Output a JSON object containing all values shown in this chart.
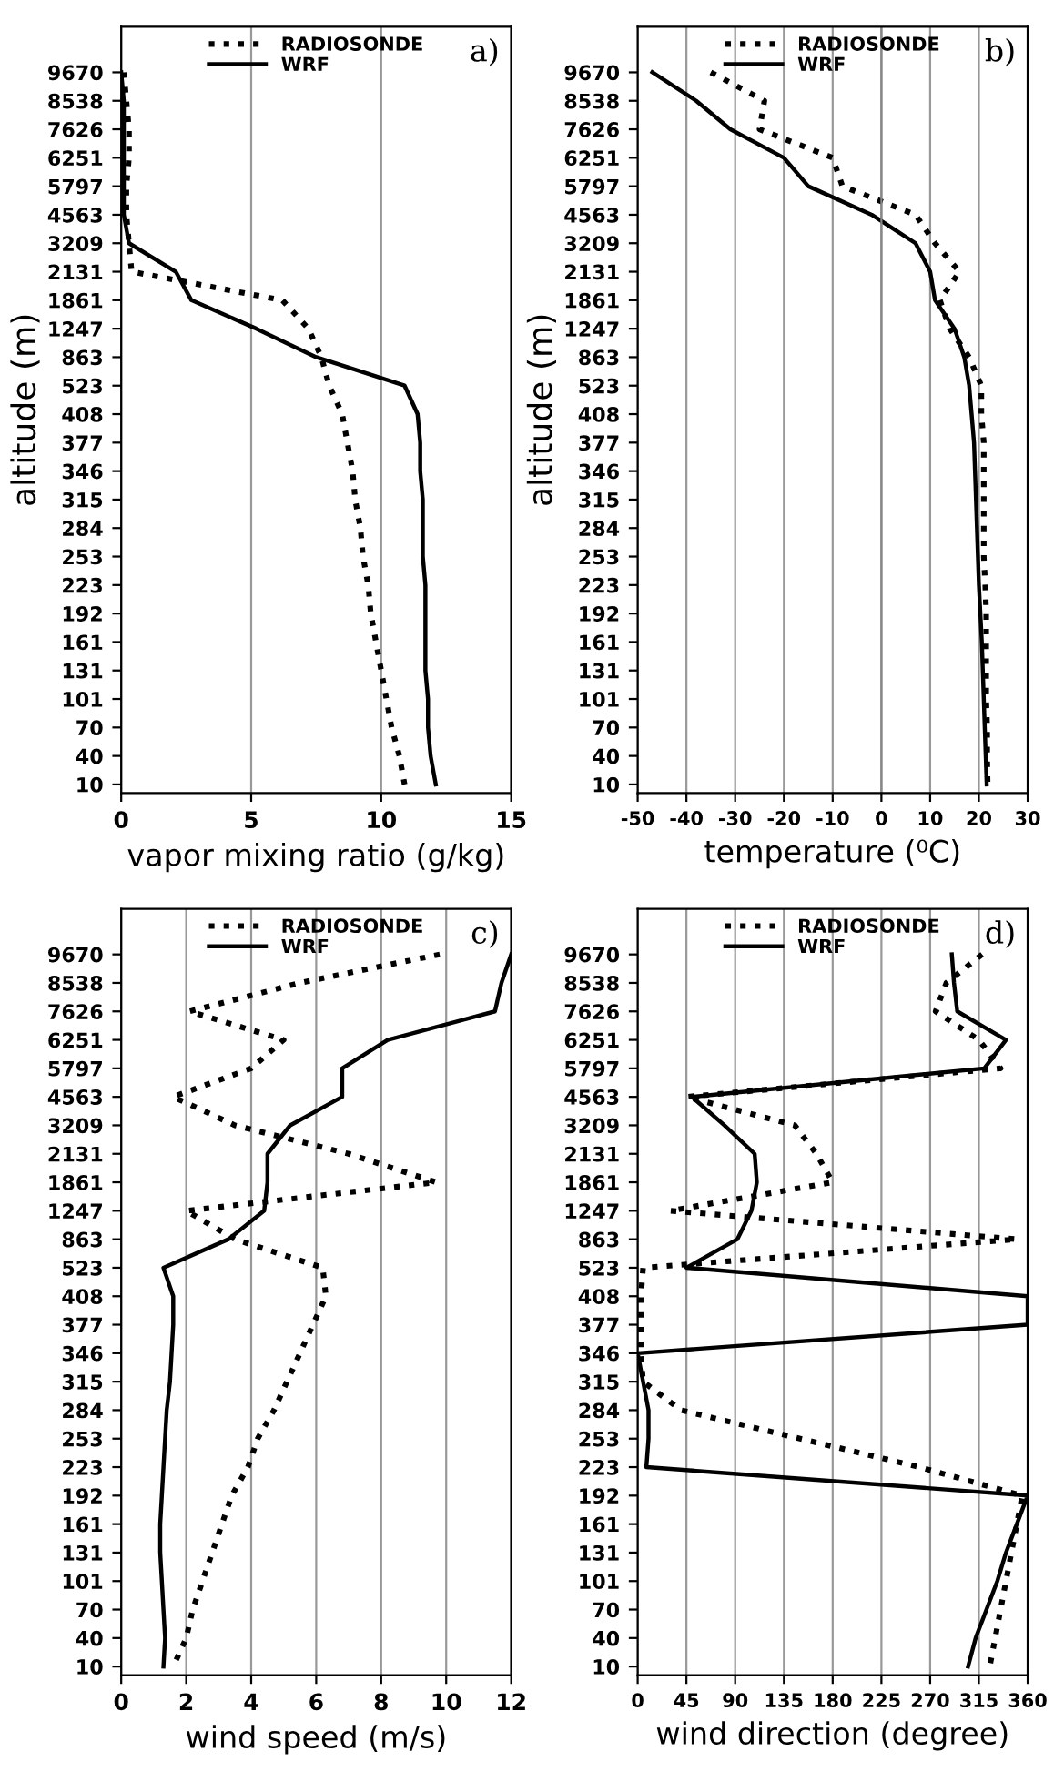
{
  "chart_data": [
    {
      "type": "line",
      "orientation": "horizontal",
      "xlabel": "vapor mixing ratio (g/kg)",
      "ylabel": "altitude (m)",
      "annotations": [
        "a)"
      ],
      "categories": [
        "9670",
        "8538",
        "7626",
        "6251",
        "5797",
        "4563",
        "3209",
        "2131",
        "1861",
        "1247",
        "863",
        "523",
        "408",
        "377",
        "346",
        "315",
        "284",
        "253",
        "223",
        "192",
        "161",
        "131",
        "101",
        "70",
        "40",
        "10"
      ],
      "xlim": [
        0,
        15
      ],
      "xticks": [
        0,
        5,
        10,
        15
      ],
      "grid": "x",
      "legend": "top",
      "series": [
        {
          "name": "RADIOSONDE",
          "color": "#000000",
          "line_style": "dotted",
          "values": [
            0.1,
            0.2,
            0.3,
            0.3,
            0.2,
            0.2,
            0.3,
            0.4,
            6.2,
            7.2,
            7.7,
            8.0,
            8.5,
            8.7,
            8.9,
            9.0,
            9.2,
            9.3,
            9.5,
            9.6,
            9.8,
            10.0,
            10.2,
            10.4,
            10.7,
            10.9
          ]
        },
        {
          "name": "WRF",
          "color": "#000000",
          "line_style": "solid",
          "values": [
            0.0,
            0.1,
            0.1,
            0.1,
            0.1,
            0.1,
            0.3,
            2.1,
            2.7,
            5.2,
            7.5,
            10.9,
            11.4,
            11.5,
            11.5,
            11.6,
            11.6,
            11.6,
            11.7,
            11.7,
            11.7,
            11.7,
            11.8,
            11.8,
            11.9,
            12.1
          ]
        }
      ]
    },
    {
      "type": "line",
      "orientation": "horizontal",
      "xlabel": "temperature (⁰C)",
      "ylabel": "altitude (m)",
      "annotations": [
        "b)"
      ],
      "categories": [
        "9670",
        "8538",
        "7626",
        "6251",
        "5797",
        "4563",
        "3209",
        "2131",
        "1861",
        "1247",
        "863",
        "523",
        "408",
        "377",
        "346",
        "315",
        "284",
        "253",
        "223",
        "192",
        "161",
        "131",
        "101",
        "70",
        "40",
        "10"
      ],
      "xlim": [
        -50,
        30
      ],
      "xticks": [
        -50,
        -40,
        -30,
        -20,
        -10,
        0,
        10,
        20,
        30
      ],
      "grid": "x",
      "legend": "top",
      "ref_lines": [
        {
          "axis": "x",
          "value": 0,
          "color": "#888888"
        }
      ],
      "series": [
        {
          "name": "RADIOSONDE",
          "color": "#000000",
          "line_style": "dotted",
          "values": [
            -35,
            -24,
            -25,
            -10,
            -8,
            7,
            11,
            16,
            12,
            14,
            18,
            20.5,
            20.5,
            21,
            21,
            21,
            21,
            21,
            21.3,
            21.5,
            21.5,
            21.5,
            21.5,
            21.7,
            21.7,
            21.8
          ]
        },
        {
          "name": "WRF",
          "color": "#000000",
          "line_style": "solid",
          "values": [
            -47,
            -38,
            -31,
            -20,
            -15,
            -2,
            7,
            10,
            11,
            15,
            17,
            18,
            18.5,
            19,
            19.2,
            19.4,
            19.6,
            19.8,
            20,
            20.3,
            20.6,
            20.8,
            21,
            21.2,
            21.4,
            21.6
          ]
        }
      ]
    },
    {
      "type": "line",
      "orientation": "horizontal",
      "xlabel": "wind speed (m/s)",
      "annotations": [
        "c)"
      ],
      "categories": [
        "9670",
        "8538",
        "7626",
        "6251",
        "5797",
        "4563",
        "3209",
        "2131",
        "1861",
        "1247",
        "863",
        "523",
        "408",
        "377",
        "346",
        "315",
        "284",
        "253",
        "223",
        "192",
        "161",
        "131",
        "101",
        "70",
        "40",
        "10"
      ],
      "xlim": [
        0,
        12
      ],
      "xticks": [
        0,
        2,
        4,
        6,
        8,
        10,
        12
      ],
      "grid": "x",
      "legend": "top",
      "series": [
        {
          "name": "RADIOSONDE",
          "color": "#000000",
          "line_style": "dotted",
          "values": [
            9.8,
            5.5,
            2.1,
            5.0,
            4.0,
            1.6,
            3.5,
            7.0,
            9.7,
            2.0,
            3.5,
            6.2,
            6.3,
            5.9,
            5.5,
            5.1,
            4.7,
            4.2,
            3.9,
            3.4,
            3.1,
            2.8,
            2.5,
            2.2,
            2.0,
            1.6
          ]
        },
        {
          "name": "WRF",
          "color": "#000000",
          "line_style": "solid",
          "values": [
            12.0,
            11.7,
            11.5,
            8.2,
            6.8,
            6.8,
            5.2,
            4.5,
            4.5,
            4.4,
            3.3,
            1.3,
            1.6,
            1.6,
            1.55,
            1.5,
            1.4,
            1.35,
            1.3,
            1.25,
            1.2,
            1.2,
            1.25,
            1.3,
            1.35,
            1.3
          ]
        }
      ]
    },
    {
      "type": "line",
      "orientation": "horizontal",
      "xlabel": "wind direction (degree)",
      "annotations": [
        "d)"
      ],
      "categories": [
        "9670",
        "8538",
        "7626",
        "6251",
        "5797",
        "4563",
        "3209",
        "2131",
        "1861",
        "1247",
        "863",
        "523",
        "408",
        "377",
        "346",
        "315",
        "284",
        "253",
        "223",
        "192",
        "161",
        "131",
        "101",
        "70",
        "40",
        "10"
      ],
      "xlim": [
        0,
        360
      ],
      "xticks": [
        0,
        45,
        90,
        135,
        180,
        225,
        270,
        315,
        360
      ],
      "grid": "x",
      "legend": "top",
      "series": [
        {
          "name": "RADIOSONDE",
          "color": "#000000",
          "line_style": "dotted",
          "values": [
            318,
            285,
            275,
            315,
            335,
            45,
            145,
            165,
            180,
            30,
            350,
            5,
            3,
            3,
            3,
            5,
            40,
            150,
            260,
            355,
            350,
            345,
            340,
            335,
            330,
            325
          ]
        },
        {
          "name": "WRF",
          "color": "#000000",
          "line_style": "solid",
          "values": [
            290,
            292,
            295,
            340,
            320,
            50,
            80,
            108,
            110,
            105,
            92,
            45,
            360,
            360,
            0,
            5,
            10,
            10,
            8,
            360,
            350,
            340,
            332,
            322,
            312,
            305
          ]
        }
      ]
    }
  ]
}
